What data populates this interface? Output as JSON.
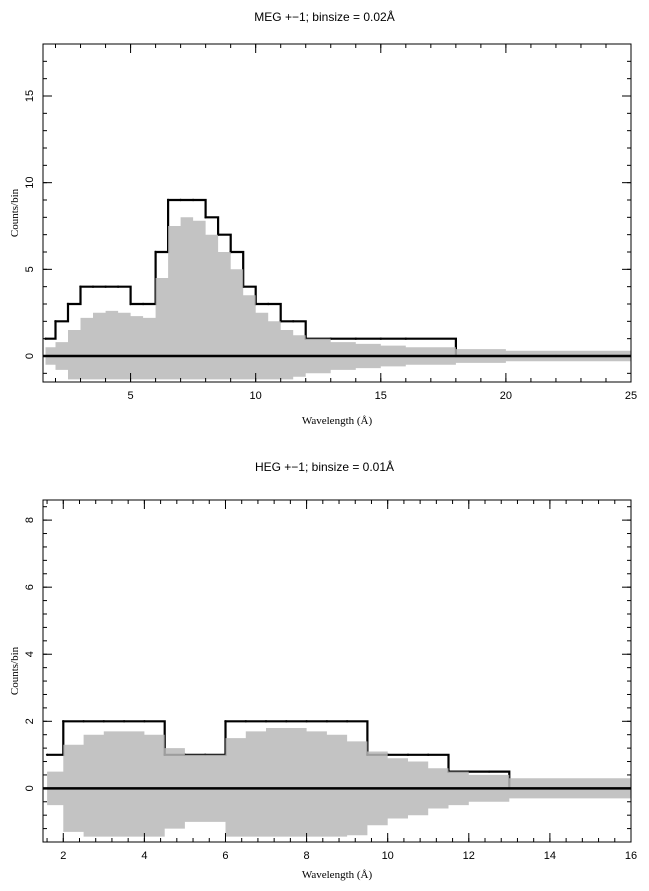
{
  "chart_data": [
    {
      "type": "line",
      "title": "MEG +−1; binsize = 0.02Å",
      "xlabel": "Wavelength (Å)",
      "ylabel": "Counts/bin",
      "xlim": [
        1.5,
        25
      ],
      "ylim": [
        -1.5,
        18
      ],
      "xticks": [
        5,
        10,
        15,
        20,
        25
      ],
      "yticks": [
        0,
        5,
        10,
        15
      ],
      "grid": false,
      "series": [
        {
          "style": "data-histogram",
          "color": "#000000",
          "x": [
            1.6,
            2.0,
            2.5,
            3.0,
            3.5,
            4.0,
            4.5,
            5.0,
            5.5,
            6.0,
            6.5,
            7.0,
            7.5,
            8.0,
            8.5,
            9.0,
            9.5,
            10.0,
            10.5,
            11.0,
            11.5,
            12.0,
            13.0,
            14.0,
            15.0,
            16.0,
            18.0,
            20.0,
            22.0,
            24.0
          ],
          "values": [
            1,
            2,
            3,
            4,
            4,
            4,
            4,
            3,
            3,
            6,
            9,
            9,
            9,
            8,
            7,
            6,
            4,
            3,
            3,
            2,
            2,
            1,
            1,
            1,
            1,
            1,
            0,
            0,
            0,
            0
          ]
        },
        {
          "style": "model-band",
          "color": "#b8b8b8",
          "x": [
            1.6,
            2.0,
            2.5,
            3.0,
            3.5,
            4.0,
            4.5,
            5.0,
            5.5,
            6.0,
            6.5,
            7.0,
            7.5,
            8.0,
            8.5,
            9.0,
            9.5,
            10.0,
            10.5,
            11.0,
            11.5,
            12.0,
            13.0,
            14.0,
            15.0,
            16.0,
            18.0,
            20.0,
            22.0,
            24.0
          ],
          "values": [
            0.5,
            0.8,
            1.5,
            2.2,
            2.5,
            2.6,
            2.5,
            2.3,
            2.2,
            4.5,
            7.5,
            8.0,
            7.8,
            7.0,
            6.0,
            5.0,
            3.5,
            2.5,
            2.0,
            1.5,
            1.2,
            1.0,
            0.8,
            0.7,
            0.6,
            0.5,
            0.4,
            0.3,
            0.3,
            0.3
          ]
        }
      ]
    },
    {
      "type": "line",
      "title": "HEG +−1; binsize = 0.01Å",
      "xlabel": "Wavelength (Å)",
      "ylabel": "Counts/bin",
      "xlim": [
        1.5,
        16
      ],
      "ylim": [
        -1.6,
        8.6
      ],
      "xticks": [
        2,
        4,
        6,
        8,
        10,
        12,
        14,
        16
      ],
      "yticks": [
        0,
        2,
        4,
        6,
        8
      ],
      "grid": false,
      "series": [
        {
          "style": "data-histogram",
          "color": "#000000",
          "x": [
            1.6,
            2.0,
            2.5,
            3.0,
            3.5,
            4.0,
            4.5,
            5.0,
            5.5,
            6.0,
            6.5,
            7.0,
            7.5,
            8.0,
            8.5,
            9.0,
            9.5,
            10.0,
            10.5,
            11.0,
            11.5,
            12.0,
            12.5,
            13.0,
            14.0,
            15.0,
            16.0
          ],
          "values": [
            1,
            2,
            2,
            2,
            2,
            2,
            1,
            1,
            1,
            2,
            2,
            2,
            2,
            2,
            2,
            2,
            1,
            1,
            1,
            1,
            0.5,
            0.5,
            0.5,
            0,
            0,
            0,
            0
          ]
        },
        {
          "style": "model-band",
          "color": "#b8b8b8",
          "x": [
            1.6,
            2.0,
            2.5,
            3.0,
            3.5,
            4.0,
            4.5,
            5.0,
            5.5,
            6.0,
            6.5,
            7.0,
            7.5,
            8.0,
            8.5,
            9.0,
            9.5,
            10.0,
            10.5,
            11.0,
            11.5,
            12.0,
            12.5,
            13.0,
            14.0,
            15.0,
            16.0
          ],
          "values": [
            0.5,
            1.3,
            1.6,
            1.7,
            1.7,
            1.6,
            1.2,
            1.0,
            1.0,
            1.5,
            1.7,
            1.8,
            1.8,
            1.7,
            1.6,
            1.4,
            1.1,
            0.9,
            0.8,
            0.6,
            0.5,
            0.4,
            0.4,
            0.3,
            0.3,
            0.3,
            0.3
          ]
        }
      ]
    }
  ]
}
